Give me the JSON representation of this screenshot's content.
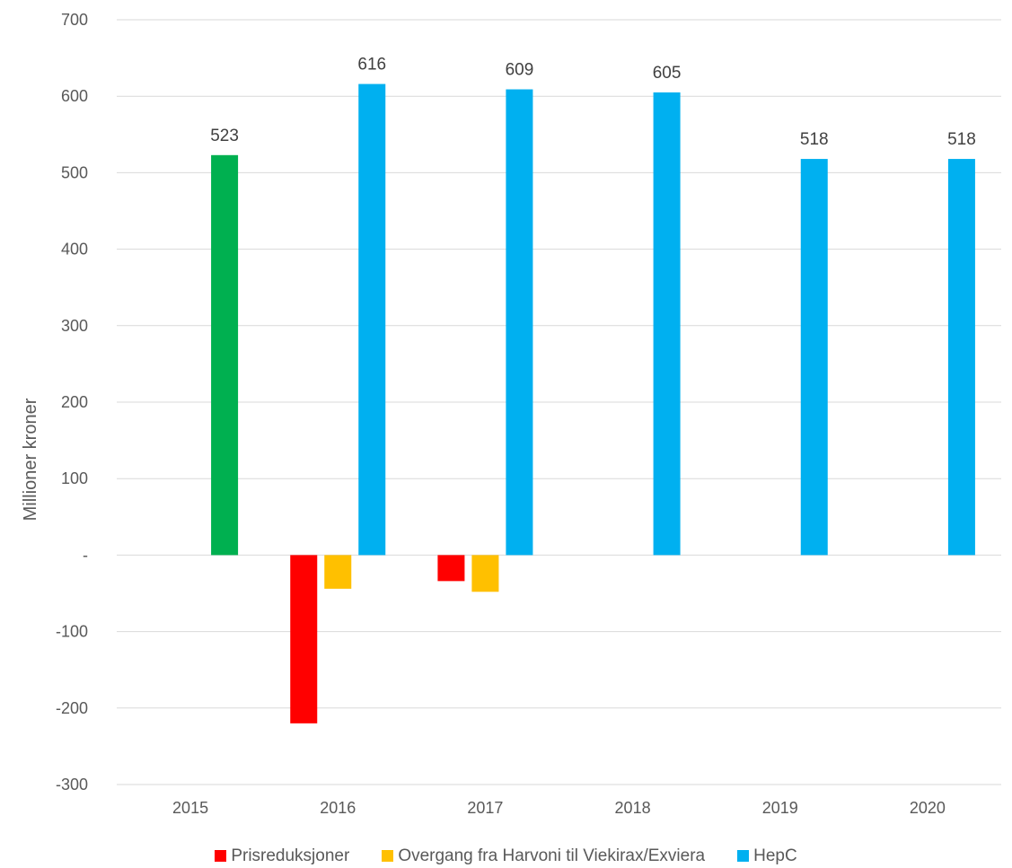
{
  "chart_data": {
    "type": "bar",
    "title": "",
    "xlabel": "",
    "ylabel": "Millioner kroner",
    "categories": [
      "2015",
      "2016",
      "2017",
      "2018",
      "2019",
      "2020"
    ],
    "ylim": [
      -300,
      700
    ],
    "yticks": [
      -300,
      -200,
      -100,
      0,
      100,
      200,
      300,
      400,
      500,
      600,
      700
    ],
    "ytick_labels": [
      "-300",
      "-200",
      "-100",
      "-",
      "100",
      "200",
      "300",
      "400",
      "500",
      "600",
      "700"
    ],
    "grid": "horizontal",
    "legend_position": "bottom",
    "series": [
      {
        "name": "Prisreduksjoner",
        "color": "#FF0000",
        "values": [
          null,
          -220,
          -34,
          null,
          null,
          null
        ],
        "show_labels": false
      },
      {
        "name": "Overgang fra Harvoni til Viekirax/Exviera",
        "color": "#FFC000",
        "values": [
          null,
          -44,
          -48,
          null,
          null,
          null
        ],
        "show_labels": false
      },
      {
        "name": "HepC",
        "color": "#00B0F0",
        "values": [
          523,
          616,
          609,
          605,
          518,
          518
        ],
        "point_colors": [
          "#00B050",
          null,
          null,
          null,
          null,
          null
        ],
        "show_labels": true
      }
    ],
    "data_labels": [
      "523",
      "616",
      "609",
      "605",
      "518",
      "518"
    ]
  }
}
